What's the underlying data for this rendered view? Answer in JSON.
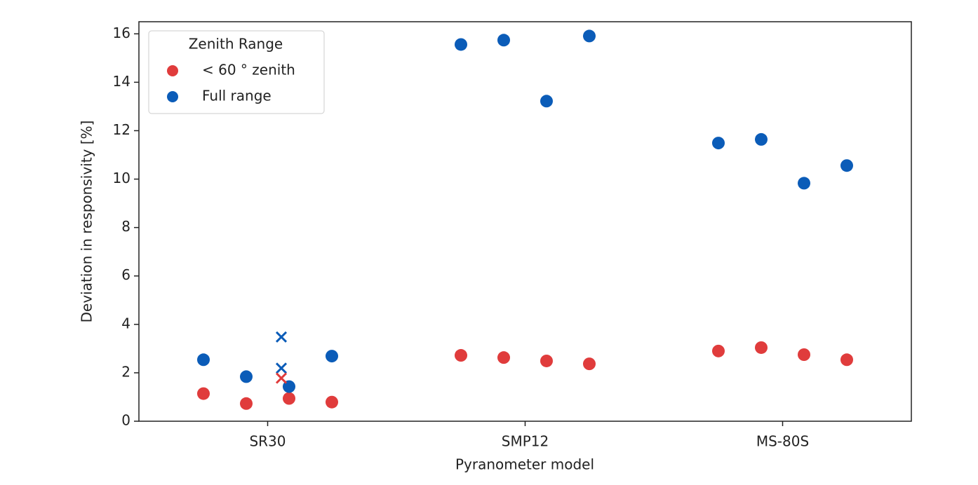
{
  "chart_data": {
    "type": "strip",
    "x_label": "Pyranometer model",
    "y_label": "Deviation in responsivity [%]",
    "legend_title": "Zenith Range",
    "legend_position": "upper left",
    "categories": [
      "SR30",
      "SMP12",
      "MS-80S"
    ],
    "series": [
      {
        "name": "< 60 ° zenith",
        "color": "#e03c3c",
        "values": [
          [
            1.14,
            0.73,
            0.94,
            0.79
          ],
          [
            2.72,
            2.63,
            2.49,
            2.37
          ],
          [
            2.9,
            3.04,
            2.75,
            2.54
          ]
        ]
      },
      {
        "name": "Full range",
        "color": "#0b5cb8",
        "values": [
          [
            2.54,
            1.84,
            1.43,
            2.69
          ],
          [
            15.56,
            15.74,
            13.22,
            15.91
          ],
          [
            11.49,
            11.64,
            9.83,
            10.56
          ]
        ]
      }
    ],
    "crosses": [
      {
        "category": "SR30",
        "color": "#0b5cb8",
        "values": [
          3.48,
          2.19
        ]
      },
      {
        "category": "SR30",
        "color": "#e03c3c",
        "values": [
          1.78
        ]
      }
    ],
    "ylim": [
      0,
      16.5
    ],
    "yticks": [
      0,
      2,
      4,
      6,
      8,
      10,
      12,
      14,
      16
    ]
  }
}
